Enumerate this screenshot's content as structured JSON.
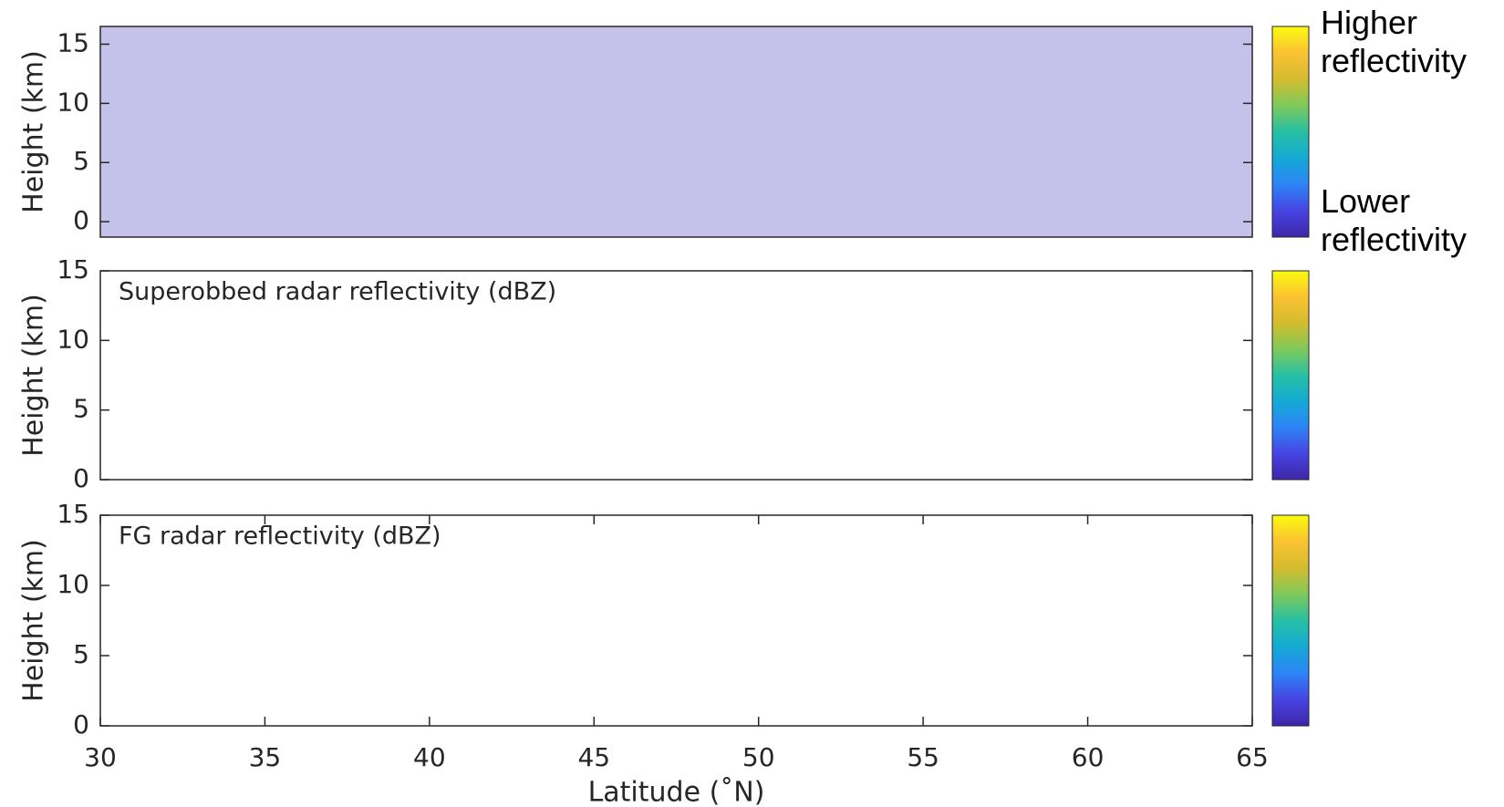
{
  "chart_data": [
    {
      "type": "heatmap",
      "ylabel": "Height (km)",
      "xlim": [
        30,
        65
      ],
      "ylim": [
        -1.3,
        16.5
      ],
      "yticks": [
        0,
        5,
        10,
        15
      ],
      "background": "#c4c2ea",
      "colormap": [
        "#3e26a8",
        "#4744e3",
        "#2d84f6",
        "#14aad5",
        "#27c0a4",
        "#7fc95a",
        "#d4bc2e",
        "#fbc232",
        "#f9fb0e"
      ]
    },
    {
      "type": "heatmap",
      "title": "Superobbed radar reflectivity (dBZ)",
      "ylabel": "Height (km)",
      "xlim": [
        30,
        65
      ],
      "ylim": [
        0,
        15
      ],
      "yticks": [
        0,
        5,
        10,
        15
      ],
      "background": "#ffffff",
      "colormap": [
        "#3e26a8",
        "#4744e3",
        "#2d84f6",
        "#14aad5",
        "#27c0a4",
        "#7fc95a",
        "#d4bc2e",
        "#fbc232",
        "#f9fb0e"
      ]
    },
    {
      "type": "heatmap",
      "title": "FG radar reflectivity (dBZ)",
      "ylabel": "Height (km)",
      "xlabel": "Latitude (˚N)",
      "xlim": [
        30,
        65
      ],
      "ylim": [
        0,
        15
      ],
      "yticks": [
        0,
        5,
        10,
        15
      ],
      "xticks": [
        30,
        35,
        40,
        45,
        50,
        55,
        60,
        65
      ],
      "background": "#ffffff",
      "colormap": [
        "#3e26a8",
        "#4744e3",
        "#2d84f6",
        "#14aad5",
        "#27c0a4",
        "#7fc95a",
        "#d4bc2e",
        "#fbc232",
        "#f9fb0e"
      ]
    }
  ],
  "colorbar_labels": {
    "high": "Higher reflectivity",
    "low": "Lower reflectivity"
  }
}
